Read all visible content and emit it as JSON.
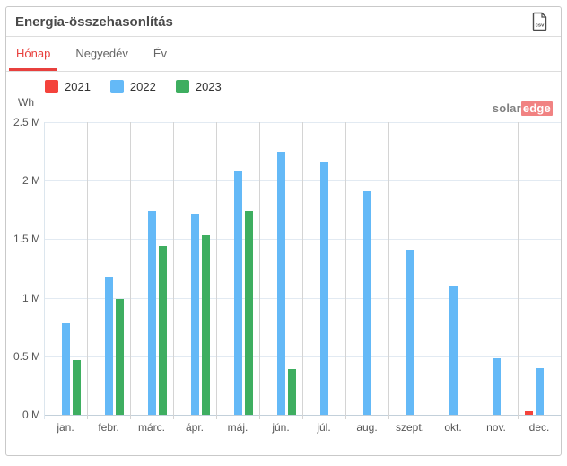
{
  "header": {
    "title": "Energia-összehasonlítás",
    "export_label": "csv"
  },
  "tabs": [
    {
      "label": "Hónap",
      "active": true
    },
    {
      "label": "Negyedév",
      "active": false
    },
    {
      "label": "Év",
      "active": false
    }
  ],
  "watermark": {
    "part1": "solar",
    "part2": "edge"
  },
  "colors": {
    "accent_red": "#e8403d",
    "series_2021": "#f4433c",
    "series_2022": "#64b9f7",
    "series_2023": "#3eae60"
  },
  "chart_data": {
    "type": "bar",
    "title": "Energia-összehasonlítás",
    "ylabel": "Wh",
    "value_unit": "millions of Wh",
    "ylim": [
      0,
      2.5
    ],
    "grid": true,
    "legend_position": "top-left",
    "categories": [
      "jan.",
      "febr.",
      "márc.",
      "ápr.",
      "máj.",
      "jún.",
      "júl.",
      "aug.",
      "szept.",
      "okt.",
      "nov.",
      "dec."
    ],
    "series": [
      {
        "name": "2021",
        "color": "#f4433c",
        "values": [
          null,
          null,
          null,
          null,
          null,
          null,
          null,
          null,
          null,
          null,
          null,
          0.03
        ]
      },
      {
        "name": "2022",
        "color": "#64b9f7",
        "values": [
          0.78,
          1.17,
          1.74,
          1.72,
          2.08,
          2.25,
          2.16,
          1.91,
          1.41,
          1.1,
          0.48,
          0.4
        ]
      },
      {
        "name": "2023",
        "color": "#3eae60",
        "values": [
          0.47,
          0.99,
          1.44,
          1.53,
          1.74,
          0.39,
          null,
          null,
          null,
          null,
          null,
          null
        ]
      }
    ],
    "yticks": [
      {
        "label": "2.5 M",
        "value": 2.5
      },
      {
        "label": "2 M",
        "value": 2.0
      },
      {
        "label": "1.5 M",
        "value": 1.5
      },
      {
        "label": "1 M",
        "value": 1.0
      },
      {
        "label": "0.5 M",
        "value": 0.5
      },
      {
        "label": "0 M",
        "value": 0.0
      }
    ]
  }
}
